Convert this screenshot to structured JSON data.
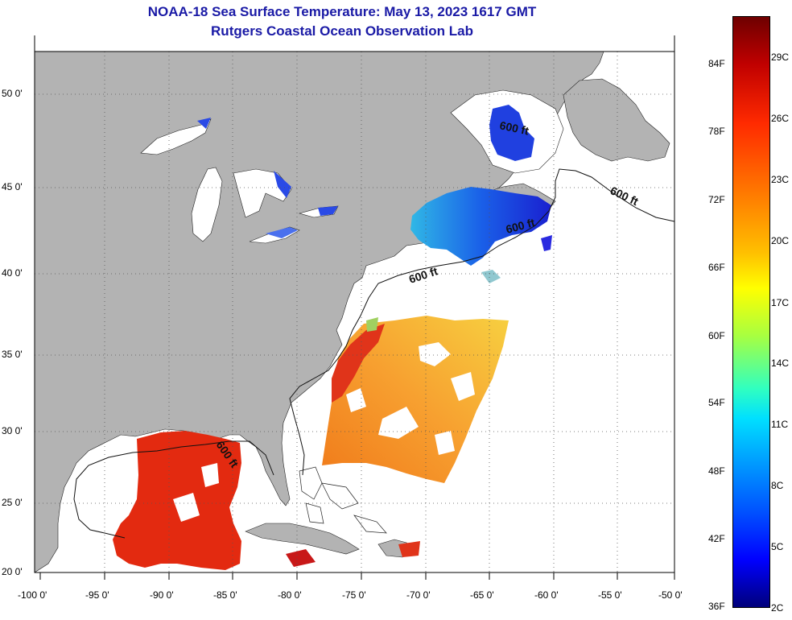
{
  "title": {
    "line1": "NOAA-18 Sea Surface Temperature:  May 13, 2023 1617 GMT",
    "line2": "Rutgers Coastal Ocean Observation Lab"
  },
  "axes": {
    "lat_labels": [
      "50 0'",
      "45 0'",
      "40 0'",
      "35 0'",
      "30 0'",
      "25 0'",
      "20 0'"
    ],
    "lon_labels": [
      "-100 0'",
      "-95 0'",
      "-90 0'",
      "-85 0'",
      "-80 0'",
      "-75 0'",
      "-70 0'",
      "-65 0'",
      "-60 0'",
      "-55 0'",
      "-50 0'"
    ]
  },
  "contour_label": "600 ft",
  "colorbar": {
    "fahrenheit": [
      "84F",
      "78F",
      "72F",
      "66F",
      "60F",
      "54F",
      "48F",
      "42F",
      "36F"
    ],
    "celsius": [
      "29C",
      "26C",
      "23C",
      "20C",
      "17C",
      "14C",
      "11C",
      "8C",
      "5C",
      "2C"
    ]
  },
  "colors": {
    "land": "#b3b3b3",
    "title": "#1a1aa6",
    "gulf_sst": "#e32a10",
    "gulf_stream_sst": "#f7a02a",
    "gulf_of_maine_sst": "#1a3ce6"
  }
}
